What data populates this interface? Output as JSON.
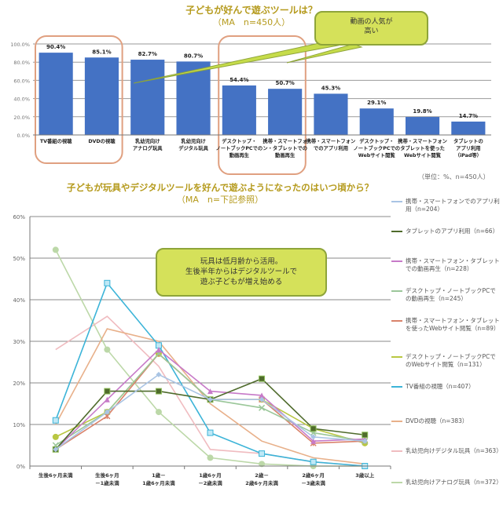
{
  "chart_data": [
    {
      "type": "bar",
      "title": "子どもが好んで遊ぶツールは？",
      "subtitle": "（MA　n=450人）",
      "xlabel": "",
      "ylabel": "",
      "ylim": [
        0,
        100
      ],
      "yticks": [
        "0.0%",
        "20.0%",
        "40.0%",
        "60.0%",
        "80.0%",
        "100.0%"
      ],
      "ytick_values": [
        0,
        20,
        40,
        60,
        80,
        100
      ],
      "grid": true,
      "bar_color": "#4472c4",
      "categories": [
        "TV番組の視聴",
        "DVDの視聴",
        "乳幼児向け\nアナログ玩具",
        "乳幼児向け\nデジタル玩具",
        "デスクトップ・\nノートブックPCでの\n動画再生",
        "携帯・スマートフォ\nン・タブレットでの\n動画再生",
        "携帯・スマートフォン\nでのアプリ利用",
        "デスクトップ・\nノートブックPCでの\nWebサイト閲覧",
        "携帯・スマートフォン\nタブレットを使った\nWebサイト閲覧",
        "タブレットの\nアプリ利用\n（iPad等）"
      ],
      "values": [
        90.4,
        85.1,
        82.7,
        80.7,
        54.4,
        50.7,
        45.3,
        29.1,
        19.8,
        14.7
      ],
      "data_labels": [
        "90.4%",
        "85.1%",
        "82.7%",
        "80.7%",
        "54.4%",
        "50.7%",
        "45.3%",
        "29.1%",
        "19.8%",
        "14.7%"
      ],
      "highlight_groups": [
        [
          0,
          1
        ],
        [
          4,
          5
        ]
      ],
      "highlight_color": "#e0a080",
      "annotation": "動画の人気が\n高い",
      "note": "（単位：%、n=450人）"
    },
    {
      "type": "line",
      "title": "子どもが玩具やデジタルツールを好んで遊ぶようになったのはいつ頃から？",
      "subtitle": "（MA　n=下記参照）",
      "xlabel": "",
      "ylabel": "",
      "ylim": [
        0,
        60
      ],
      "yticks": [
        "0%",
        "10%",
        "20%",
        "30%",
        "40%",
        "50%",
        "60%"
      ],
      "ytick_values": [
        0,
        10,
        20,
        30,
        40,
        50,
        60
      ],
      "grid": true,
      "legend_position": "right",
      "categories": [
        "生後6ヶ月未満",
        "生後6ヶ月\n－1歳未満",
        "1歳－\n1歳6ヶ月未満",
        "1歳6ヶ月\n－2歳未満",
        "2歳－\n2歳6ヶ月未満",
        "2歳6ヶ月\n－3歳未満",
        "3歳以上"
      ],
      "series": [
        {
          "name": "携帯・スマートフォンでのアプリ利用（n=204）",
          "color": "#a9c4e4",
          "marker": "diamond",
          "values": [
            4,
            13,
            22,
            16,
            16,
            7,
            6
          ]
        },
        {
          "name": "タブレットのアプリ利用（n=66）",
          "color": "#4f6b2c",
          "marker": "square",
          "values": [
            4,
            18,
            18,
            16,
            21,
            9,
            7.5
          ]
        },
        {
          "name": "携帯・スマートフォン・タブレットでの動画再生（n=228）",
          "color": "#c77ac8",
          "marker": "triangle",
          "values": [
            4,
            16,
            28,
            18,
            17,
            6,
            6.5
          ]
        },
        {
          "name": "デスクトップ・ノートブックPCでの動画再生（n=245）",
          "color": "#9bc79a",
          "marker": "x",
          "values": [
            5,
            13,
            27,
            16,
            14,
            8,
            6
          ]
        },
        {
          "name": "携帯・スマートフォン・タブレットを使ったWebサイト閲覧（n=89）",
          "color": "#d9826a",
          "marker": "star",
          "values": [
            4,
            12,
            27,
            16,
            16,
            5.5,
            6
          ]
        },
        {
          "name": "デスクトップ・ノートブックPCでのWebサイト閲覧（n=131）",
          "color": "#b9c742",
          "marker": "circle",
          "values": [
            7,
            13,
            27,
            16,
            16,
            9,
            5.5
          ]
        },
        {
          "name": "TV番組の視聴（n=407）",
          "color": "#3cb4d8",
          "marker": "square-open",
          "values": [
            11,
            44,
            29,
            8,
            3,
            1,
            0
          ]
        },
        {
          "name": "DVDの視聴（n=383）",
          "color": "#e8b08a",
          "marker": "none",
          "values": [
            10,
            33,
            30,
            15,
            6,
            2,
            0.5
          ]
        },
        {
          "name": "乳幼児向けデジタル玩具（n=363）",
          "color": "#f0bcc0",
          "marker": "none",
          "values": [
            28,
            36,
            24,
            4,
            3,
            1,
            0
          ]
        },
        {
          "name": "乳幼児向けアナログ玩具（n=372）",
          "color": "#bcd8a8",
          "marker": "circle",
          "values": [
            52,
            28,
            13,
            2,
            0.5,
            0,
            0
          ]
        }
      ],
      "annotation": "玩具は低月齢から活用。\n生後半年からはデジタルツールで\n遊ぶ子どもが増え始める"
    }
  ]
}
